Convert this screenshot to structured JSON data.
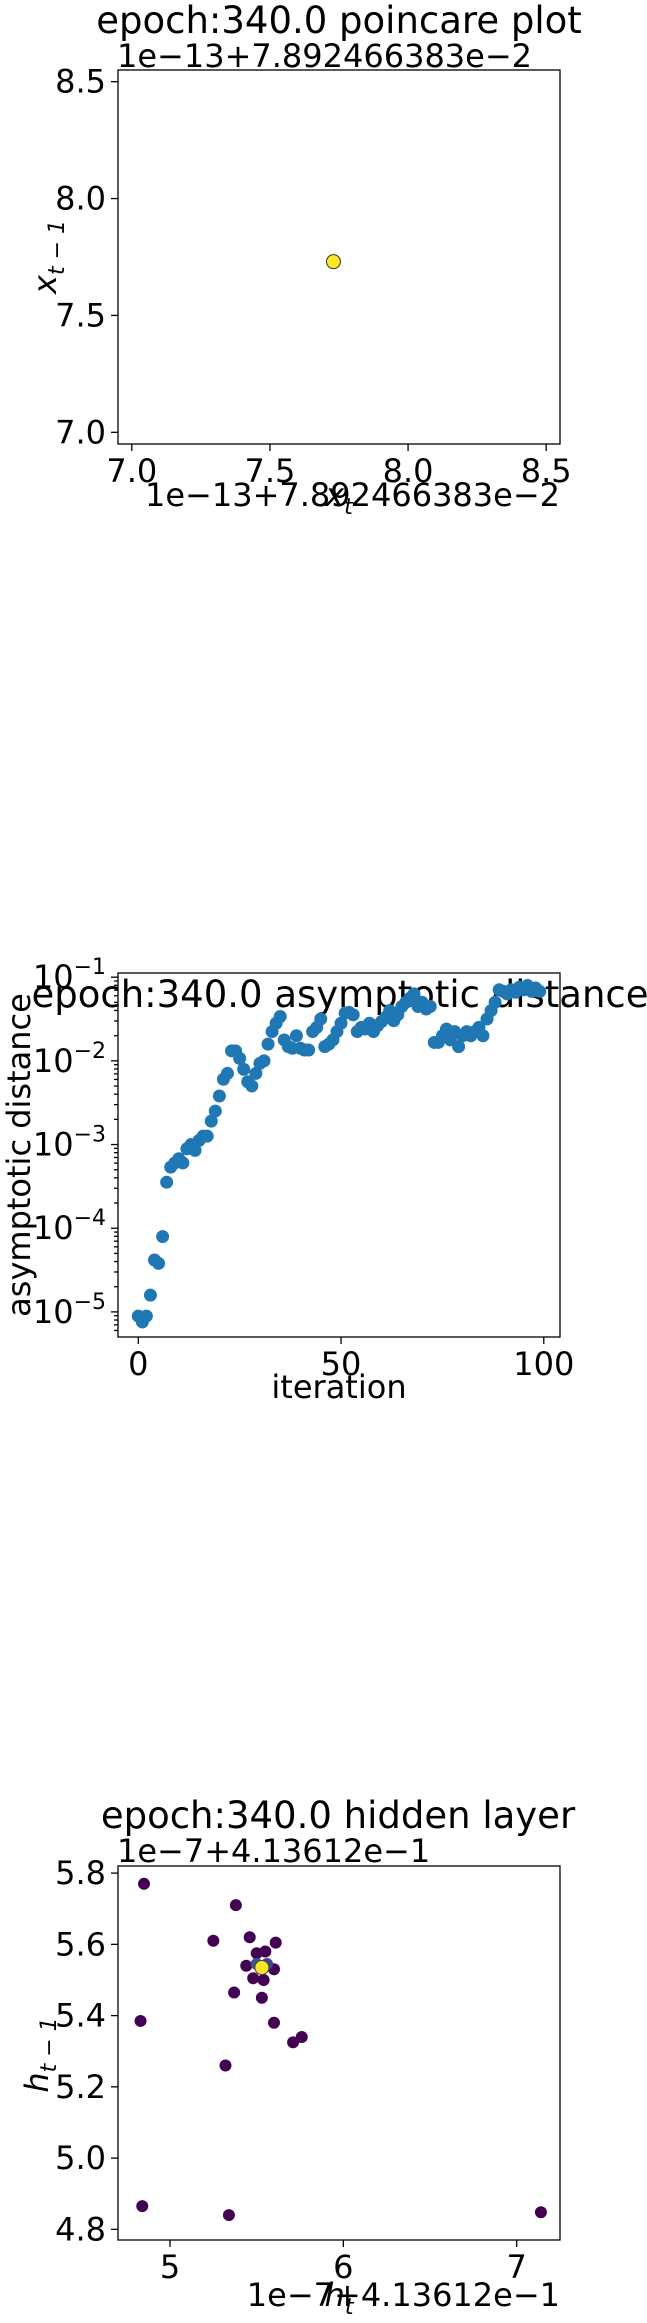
{
  "chart_data": [
    {
      "type": "scatter",
      "title": "epoch:340.0 poincare plot",
      "xlabel": "x_t",
      "ylabel": "x_{t-1}",
      "x_offset_text": "1e−13+7.892466383e−2",
      "y_offset_text": "1e−13+7.892466383e−2",
      "xlim": [
        6.95,
        8.55
      ],
      "ylim": [
        6.95,
        8.55
      ],
      "xticks": [
        7.0,
        7.5,
        8.0,
        8.5
      ],
      "xtick_labels": [
        "7.0",
        "7.5",
        "8.0",
        "8.5"
      ],
      "yticks": [
        7.0,
        7.5,
        8.0,
        8.5
      ],
      "ytick_labels": [
        "7.0",
        "7.5",
        "8.0",
        "8.5"
      ],
      "grid": false,
      "series": [
        {
          "points": [
            [
              7.73,
              7.73
            ]
          ],
          "color": "#fde725"
        }
      ]
    },
    {
      "type": "scatter",
      "title": "epoch:340.0 asymptotic distance",
      "xlabel": "iteration",
      "ylabel": "asymptotic distance",
      "yscale": "log",
      "xlim": [
        -5,
        104
      ],
      "ylim_log10": [
        -5.3,
        -0.95
      ],
      "xticks": [
        0,
        50,
        100
      ],
      "xtick_labels": [
        "0",
        "50",
        "100"
      ],
      "yticks_log10": [
        -5,
        -4,
        -3,
        -2,
        -1
      ],
      "ytick_labels": [
        "10",
        "10",
        "10",
        "10",
        "10"
      ],
      "ytick_exponents": [
        "−5",
        "−4",
        "−3",
        "−2",
        "−1"
      ],
      "grid": false,
      "color": "#1f77b4",
      "series": [
        {
          "x": [
            0,
            1,
            2,
            3,
            4,
            5,
            6,
            7,
            8,
            9,
            10,
            11,
            12,
            13,
            14,
            15,
            16,
            17,
            18,
            19,
            20,
            21,
            22,
            23,
            24,
            25,
            26,
            27,
            28,
            29,
            30,
            31,
            32,
            33,
            34,
            35,
            36,
            37,
            38,
            39,
            40,
            41,
            42,
            43,
            44,
            45,
            46,
            47,
            48,
            49,
            50,
            51,
            52,
            53,
            54,
            55,
            56,
            57,
            58,
            59,
            60,
            61,
            62,
            63,
            64,
            65,
            66,
            67,
            68,
            69,
            70,
            71,
            72,
            73,
            74,
            75,
            76,
            77,
            78,
            79,
            80,
            81,
            82,
            83,
            84,
            85,
            86,
            87,
            88,
            89,
            90,
            91,
            92,
            93,
            94,
            95,
            96,
            97,
            98,
            99
          ],
          "log10_y": [
            -5.05,
            -5.12,
            -5.05,
            -4.8,
            -4.38,
            -4.42,
            -4.1,
            -3.45,
            -3.27,
            -3.22,
            -3.17,
            -3.22,
            -3.05,
            -3.0,
            -3.07,
            -2.95,
            -2.9,
            -2.9,
            -2.72,
            -2.6,
            -2.42,
            -2.22,
            -2.15,
            -1.88,
            -1.88,
            -1.97,
            -2.1,
            -2.25,
            -2.3,
            -2.15,
            -2.03,
            -2.0,
            -1.8,
            -1.65,
            -1.55,
            -1.47,
            -1.75,
            -1.83,
            -1.85,
            -1.7,
            -1.85,
            -1.87,
            -1.87,
            -1.65,
            -1.6,
            -1.5,
            -1.83,
            -1.8,
            -1.75,
            -1.65,
            -1.55,
            -1.43,
            -1.42,
            -1.45,
            -1.65,
            -1.6,
            -1.62,
            -1.55,
            -1.65,
            -1.58,
            -1.53,
            -1.48,
            -1.4,
            -1.52,
            -1.45,
            -1.35,
            -1.3,
            -1.25,
            -1.2,
            -1.35,
            -1.3,
            -1.38,
            -1.35,
            -1.78,
            -1.78,
            -1.7,
            -1.62,
            -1.75,
            -1.65,
            -1.83,
            -1.7,
            -1.65,
            -1.7,
            -1.65,
            -1.6,
            -1.7,
            -1.5,
            -1.4,
            -1.3,
            -1.15,
            -1.17,
            -1.2,
            -1.15,
            -1.18,
            -1.12,
            -1.15,
            -1.1,
            -1.17,
            -1.13,
            -1.17
          ]
        }
      ]
    },
    {
      "type": "scatter",
      "title": "epoch:340.0 hidden layer",
      "xlabel": "h_t",
      "ylabel": "h_{t-1}",
      "x_offset_text": "1e−7+4.13612e−1",
      "y_offset_text": "1e−7+4.13612e−1",
      "xlim": [
        4.7,
        7.25
      ],
      "ylim": [
        4.77,
        5.82
      ],
      "xticks": [
        5,
        6,
        7
      ],
      "xtick_labels": [
        "5",
        "6",
        "7"
      ],
      "yticks": [
        4.8,
        5.0,
        5.2,
        5.4,
        5.6,
        5.8
      ],
      "ytick_labels": [
        "4.8",
        "5.0",
        "5.2",
        "5.4",
        "5.6",
        "5.8"
      ],
      "grid": false,
      "series": [
        {
          "points": [
            [
              4.85,
              5.77
            ],
            [
              4.83,
              5.385
            ],
            [
              4.84,
              4.865
            ],
            [
              5.34,
              4.84
            ],
            [
              7.14,
              4.848
            ],
            [
              5.32,
              5.26
            ],
            [
              5.25,
              5.61
            ],
            [
              5.38,
              5.71
            ],
            [
              5.37,
              5.465
            ],
            [
              5.44,
              5.54
            ],
            [
              5.46,
              5.62
            ],
            [
              5.5,
              5.575
            ],
            [
              5.55,
              5.58
            ],
            [
              5.61,
              5.605
            ],
            [
              5.6,
              5.53
            ],
            [
              5.54,
              5.5
            ],
            [
              5.48,
              5.505
            ],
            [
              5.53,
              5.45
            ],
            [
              5.6,
              5.38
            ],
            [
              5.71,
              5.325
            ],
            [
              5.76,
              5.34
            ],
            [
              5.5,
              5.545
            ],
            [
              5.56,
              5.545
            ]
          ],
          "colors": [
            "#440154",
            "#440154",
            "#440154",
            "#440154",
            "#440154",
            "#440154",
            "#440154",
            "#440154",
            "#440154",
            "#440154",
            "#440154",
            "#440154",
            "#440154",
            "#440154",
            "#440154",
            "#440154",
            "#440154",
            "#440154",
            "#440154",
            "#440154",
            "#440154",
            "#3b528b",
            "#414487"
          ],
          "highlight": [
            5.53,
            5.535
          ],
          "highlight_color": "#fde725"
        }
      ]
    }
  ]
}
